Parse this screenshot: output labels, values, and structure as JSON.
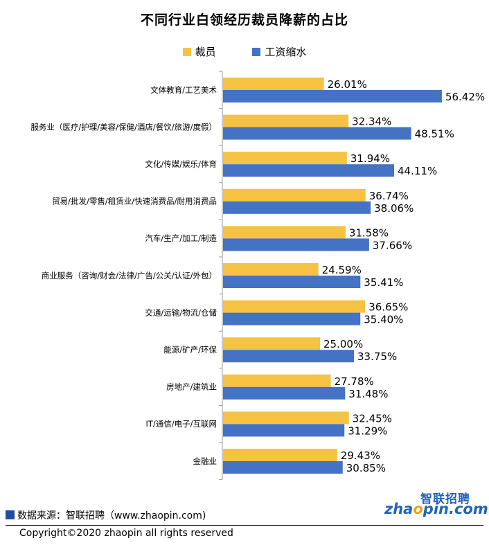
{
  "chart_data": {
    "type": "bar",
    "orientation": "horizontal",
    "title": "不同行业白领经历裁员降薪的占比",
    "categories": [
      "文体教育/工艺美术",
      "服务业（医疗/护理/美容/保健/酒店/餐饮/旅游/度假）",
      "文化/传媒/娱乐/体育",
      "贸易/批发/零售/租赁业/快速消费品/耐用消费品",
      "汽车/生产/加工/制造",
      "商业服务（咨询/财会/法律/广告/公关/认证/外包）",
      "交通/运输/物流/仓储",
      "能源/矿产/环保",
      "房地产/建筑业",
      "IT/通信/电子/互联网",
      "金融业"
    ],
    "series": [
      {
        "name": "裁员",
        "color": "#f5c242",
        "values": [
          26.01,
          32.34,
          31.94,
          36.74,
          31.58,
          24.59,
          36.65,
          25.0,
          27.78,
          32.45,
          29.43
        ],
        "labels": [
          "26.01%",
          "32.34%",
          "31.94%",
          "36.74%",
          "31.58%",
          "24.59%",
          "36.65%",
          "25.00%",
          "27.78%",
          "32.45%",
          "29.43%"
        ]
      },
      {
        "name": "工资缩水",
        "color": "#4472c4",
        "values": [
          56.42,
          48.51,
          44.11,
          38.06,
          37.66,
          35.41,
          35.4,
          33.75,
          31.48,
          31.29,
          30.85
        ],
        "labels": [
          "56.42%",
          "48.51%",
          "44.11%",
          "38.06%",
          "37.66%",
          "35.41%",
          "35.40%",
          "33.75%",
          "31.48%",
          "31.29%",
          "30.85%"
        ]
      }
    ],
    "xlim": [
      0,
      100
    ],
    "grid": false,
    "legend_position": "top"
  },
  "footer": {
    "source": "数据来源：智联招聘（www.zhaopin.com)",
    "copyright": "Copyright©2020 zhaopin all rights reserved"
  },
  "logo": {
    "cn": "智联招聘",
    "en_prefix": "zha",
    "en_dot": "o",
    "en_suffix": "pin.com"
  },
  "colors": {
    "accent": "#1f4e9c",
    "logo": "#1f64b8"
  }
}
